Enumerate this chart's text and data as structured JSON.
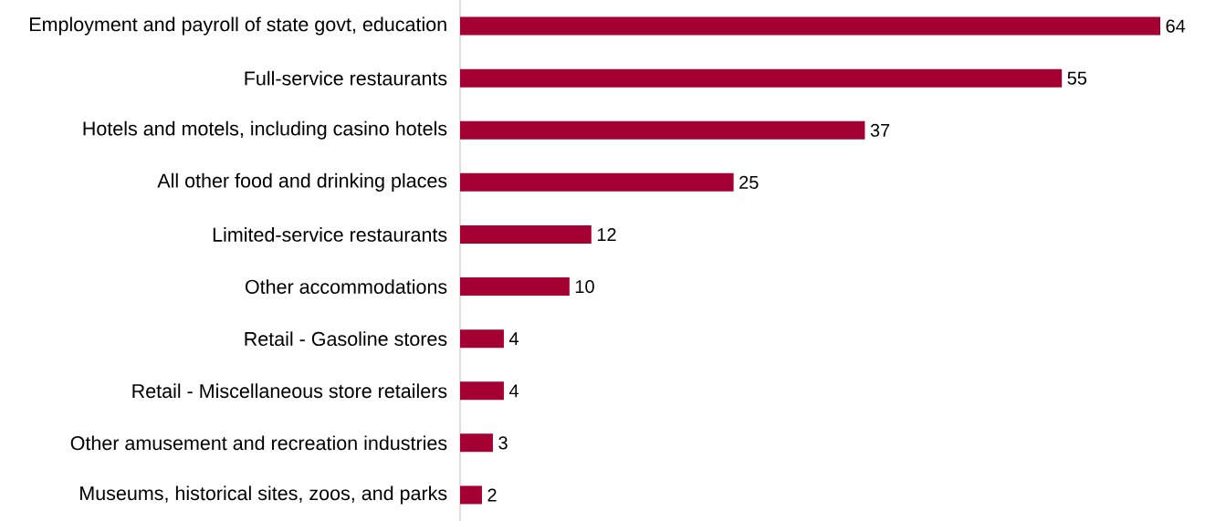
{
  "chart_data": {
    "type": "bar",
    "orientation": "horizontal",
    "data_labels": true,
    "tick_labels": "y",
    "color": "#a50034",
    "categories": [
      "Employment and payroll of state govt, education",
      "Full-service restaurants",
      "Hotels and motels, including casino hotels",
      "All other food and drinking places",
      "Limited-service restaurants",
      "Other accommodations",
      "Retail - Gasoline stores",
      "Retail - Miscellaneous store retailers",
      "Other amusement and recreation industries",
      "Museums, historical sites, zoos, and parks"
    ],
    "values": [
      64,
      55,
      37,
      25,
      12,
      10,
      4,
      4,
      3,
      2
    ]
  }
}
